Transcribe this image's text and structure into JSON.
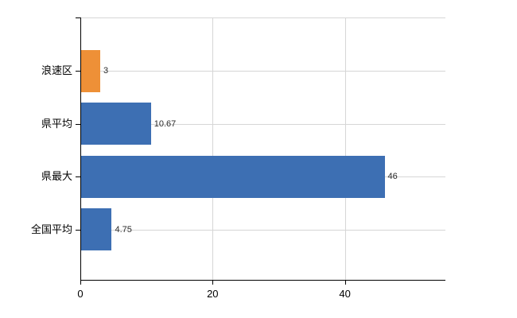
{
  "chart_data": {
    "type": "bar",
    "orientation": "horizontal",
    "title": "",
    "xlabel": "",
    "ylabel": "",
    "categories": [
      "浪速区",
      "県平均",
      "県最大",
      "全国平均"
    ],
    "values": [
      3,
      10.67,
      46,
      4.75
    ],
    "value_labels": [
      "3",
      "10.67",
      "46",
      "4.75"
    ],
    "bar_colors": [
      "#ee9037",
      "#3d6fb3",
      "#3d6fb3",
      "#3d6fb3"
    ],
    "xlim": [
      0,
      55.2
    ],
    "x_ticks": [
      0,
      20,
      40
    ],
    "x_tick_labels": [
      "0",
      "20",
      "40"
    ],
    "grid": true,
    "legend": false
  },
  "colors": {
    "background": "#ffffff",
    "axis": "#000000",
    "grid": "#d6d6d6",
    "category_label": "#000000",
    "value_label": "#2b2b2b",
    "highlight_bar": "#ee9037",
    "default_bar": "#3d6fb3"
  }
}
